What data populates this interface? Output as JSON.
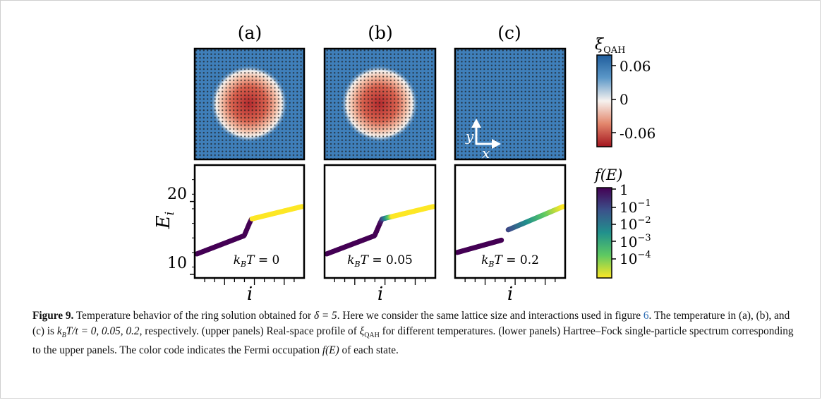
{
  "panels": [
    {
      "label": "(a)",
      "temperature_text": "k_B T = 0",
      "kT_val": "0"
    },
    {
      "label": "(b)",
      "temperature_text": "k_B T = 0.05",
      "kT_val": "0.05"
    },
    {
      "label": "(c)",
      "temperature_text": "k_B T = 0.2",
      "kT_val": "0.2"
    }
  ],
  "axes": {
    "ylabel_main": "E",
    "ylabel_sub": "i",
    "xlabel": "i",
    "yticks": [
      "20",
      "10"
    ],
    "ytick_values": [
      20,
      10
    ],
    "ylim": [
      9.5,
      25
    ],
    "inset_axis_labels": {
      "y": "y",
      "x": "x"
    }
  },
  "colorbar_top": {
    "title_main": "ξ",
    "title_sub": "QAH",
    "ticks": [
      "0.06",
      "0",
      "-0.06"
    ],
    "colors": {
      "high": "#2b6aa8",
      "mid": "#f6f2ef",
      "low": "#b0202b"
    }
  },
  "colorbar_bottom": {
    "title": "f(E)",
    "ticks": [
      "1",
      "10",
      "10",
      "10",
      "10"
    ],
    "tick_exps": [
      "",
      "−1",
      "−2",
      "−3",
      "−4"
    ],
    "colors": [
      "#440154",
      "#3b528b",
      "#21918c",
      "#5ec962",
      "#fde725"
    ]
  },
  "chart_data": {
    "type": "scatter",
    "title": "",
    "xlabel": "i",
    "ylabel": "E_i",
    "ylim": [
      9.5,
      25
    ],
    "series": [
      {
        "name": "k_B T = 0",
        "points": [
          [
            0,
            12.8
          ],
          [
            0.45,
            15.3
          ],
          [
            0.5,
            17.0
          ],
          [
            0.52,
            17.6
          ],
          [
            1.0,
            19.3
          ]
        ]
      },
      {
        "name": "k_B T = 0.05",
        "points": [
          [
            0,
            12.8
          ],
          [
            0.45,
            15.3
          ],
          [
            0.5,
            17.0
          ],
          [
            0.52,
            17.6
          ],
          [
            1.0,
            19.3
          ]
        ]
      },
      {
        "name": "k_B T = 0.2",
        "points": [
          [
            0,
            13.0
          ],
          [
            0.42,
            14.7
          ],
          [
            0.48,
            16.1
          ],
          [
            1.0,
            19.3
          ]
        ]
      }
    ]
  },
  "caption": {
    "fig_label": "Figure 9.",
    "line1_a": " Temperature behavior of the ring solution obtained for ",
    "delta_eq": "δ = 5",
    "line1_b": ". Here we consider the same lattice size and interactions used in (a), (b), and (c) is ",
    "line1_pre": "used in figure ",
    "fig_ref": "6",
    "line1_c": ". The temperature in (a), (b), and (c) is ",
    "kT_expr": "k",
    "kT_rest": "T/t = 0,  0.05,  0.2",
    "line2_end": ", respectively. (upper panels) Real-space profile of",
    "xi": "ξ",
    "xi_sub": "QAH",
    "line3": " for different temperatures. (lower panels) Hartree–Fock single-particle spectrum corresponding to the upper panels. The",
    "line4_a": "color code indicates the Fermi occupation ",
    "fE": "f(E)",
    "line4_b": " of each state."
  }
}
